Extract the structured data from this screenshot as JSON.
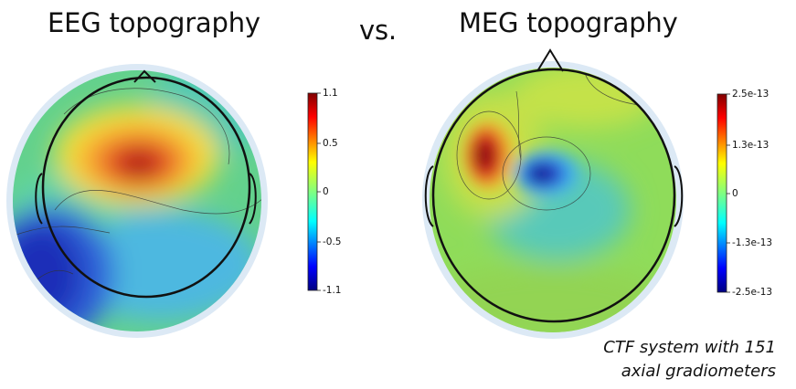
{
  "titles": {
    "eeg": "EEG topography",
    "vs": "vs.",
    "meg": "MEG topography"
  },
  "eeg_colorbar": {
    "ticks": [
      "1.1",
      "0.5",
      "0",
      "-0.5",
      "-1.1"
    ],
    "tick_values": [
      1.1,
      0.5,
      0,
      -0.5,
      -1.1
    ],
    "range": [
      -1.1,
      1.1
    ]
  },
  "meg_colorbar": {
    "ticks": [
      "2.5e-13",
      "1.3e-13",
      "0",
      "-1.3e-13",
      "-2.5e-13"
    ],
    "tick_values": [
      2.5e-13,
      1.3e-13,
      0,
      -1.3e-13,
      -2.5e-13
    ],
    "range": [
      -2.5e-13,
      2.5e-13
    ]
  },
  "caption": {
    "line1": "CTF system with 151",
    "line2": "axial gradiometers"
  },
  "colors": {
    "colormap": "jet",
    "head_outline": "#111111",
    "halo": "#dce9f5"
  }
}
